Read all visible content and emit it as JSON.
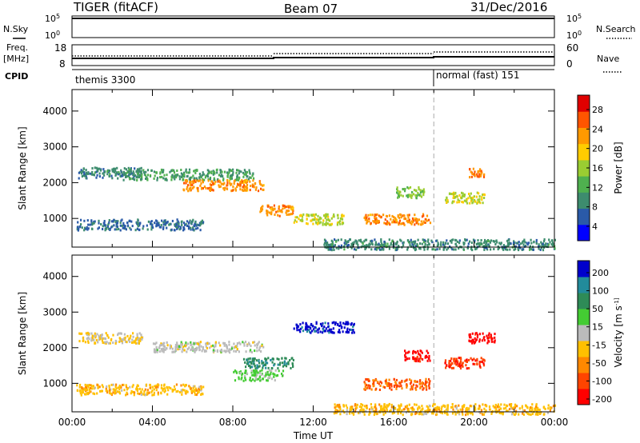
{
  "header": {
    "radar_title": "TIGER (fitACF)",
    "beam": "Beam 07",
    "date": "31/Dec/2016"
  },
  "strips": {
    "nsky_label": "N.Sky",
    "nsky_ticks": [
      "10^5",
      "10^0"
    ],
    "nsearch_label": "N.Search",
    "nsearch_ticks": [
      "10^5",
      "10^0"
    ],
    "freq_label": "Freq.",
    "freq_unit": "[MHz]",
    "freq_ticks": [
      "18",
      "8"
    ],
    "nave_label": "Nave",
    "nave_ticks": [
      "60",
      "0"
    ],
    "cpid_label": "CPID",
    "cpid_segments": [
      {
        "name": "themis 3300",
        "start_hour": 0,
        "end_hour": 18
      },
      {
        "name": "normal (fast) 151",
        "start_hour": 18,
        "end_hour": 24
      }
    ]
  },
  "chart_data": [
    {
      "type": "heatmap",
      "panel": "power",
      "xlabel": "",
      "ylabel": "Slant Range [km]",
      "xlim": [
        0,
        24
      ],
      "ylim": [
        200,
        4600
      ],
      "y_ticks": [
        "4000",
        "3000",
        "2000",
        "1000"
      ],
      "colorbar_label": "Power [dB]",
      "colorbar_ticks": [
        "28",
        "24",
        "20",
        "16",
        "12",
        "8",
        "4"
      ],
      "colorbar_range": [
        0,
        30
      ],
      "scatter_regions": [
        {
          "x_start": 0.2,
          "x_end": 6.5,
          "range_km": 850,
          "value": 6
        },
        {
          "x_start": 0.3,
          "x_end": 3.5,
          "range_km": 2300,
          "value": 8
        },
        {
          "x_start": 2.5,
          "x_end": 9.0,
          "range_km": 2250,
          "value": 10
        },
        {
          "x_start": 5.5,
          "x_end": 9.5,
          "range_km": 1950,
          "value": 22
        },
        {
          "x_start": 9.2,
          "x_end": 11.0,
          "range_km": 1250,
          "value": 22
        },
        {
          "x_start": 11.0,
          "x_end": 13.5,
          "range_km": 1000,
          "value": 16
        },
        {
          "x_start": 14.5,
          "x_end": 17.8,
          "range_km": 1000,
          "value": 22
        },
        {
          "x_start": 16.0,
          "x_end": 17.5,
          "range_km": 1750,
          "value": 14
        },
        {
          "x_start": 18.5,
          "x_end": 20.5,
          "range_km": 1600,
          "value": 16
        },
        {
          "x_start": 19.7,
          "x_end": 20.5,
          "range_km": 2300,
          "value": 24
        },
        {
          "x_start": 12.5,
          "x_end": 24.0,
          "range_km": 300,
          "value": 8
        }
      ]
    },
    {
      "type": "heatmap",
      "panel": "velocity",
      "xlabel": "Time UT",
      "ylabel": "Slant Range [km]",
      "xlim": [
        0,
        24
      ],
      "ylim": [
        200,
        4600
      ],
      "x_ticks": [
        "00:00",
        "04:00",
        "08:00",
        "12:00",
        "16:00",
        "20:00",
        "00:00"
      ],
      "y_ticks": [
        "4000",
        "3000",
        "2000",
        "1000"
      ],
      "colorbar_label": "Velocity [m s^-1]",
      "colorbar_ticks": [
        "200",
        "100",
        "50",
        "15",
        "-15",
        "-50",
        "-100",
        "-200"
      ],
      "colorbar_range": [
        -250,
        250
      ],
      "scatter_regions": [
        {
          "x_start": 0.2,
          "x_end": 6.5,
          "range_km": 850,
          "value": -60
        },
        {
          "x_start": 0.3,
          "x_end": 3.5,
          "range_km": 2300,
          "value": -30
        },
        {
          "x_start": 4.0,
          "x_end": 9.5,
          "range_km": 2050,
          "value": 0
        },
        {
          "x_start": 8.5,
          "x_end": 11.0,
          "range_km": 1600,
          "value": 120
        },
        {
          "x_start": 8.0,
          "x_end": 10.5,
          "range_km": 1250,
          "value": 40
        },
        {
          "x_start": 11.0,
          "x_end": 14.0,
          "range_km": 2600,
          "value": 220
        },
        {
          "x_start": 14.5,
          "x_end": 17.8,
          "range_km": 1000,
          "value": -150
        },
        {
          "x_start": 16.5,
          "x_end": 17.8,
          "range_km": 1800,
          "value": -220
        },
        {
          "x_start": 18.5,
          "x_end": 20.5,
          "range_km": 1600,
          "value": -180
        },
        {
          "x_start": 19.7,
          "x_end": 21.0,
          "range_km": 2300,
          "value": -230
        },
        {
          "x_start": 13.0,
          "x_end": 24.0,
          "range_km": 300,
          "value": -60
        }
      ]
    }
  ],
  "colors": {
    "power_scale": [
      "#0000ff",
      "#2a5aa8",
      "#3d8c6e",
      "#4fb04f",
      "#9acd32",
      "#ffcc00",
      "#ff9900",
      "#ff5500",
      "#e00000"
    ],
    "velocity_scale": [
      "#ff0000",
      "#ff4400",
      "#ff8800",
      "#ffc000",
      "#bbbbbb",
      "#44cc33",
      "#2e8b57",
      "#228b9b",
      "#0000cc"
    ]
  }
}
